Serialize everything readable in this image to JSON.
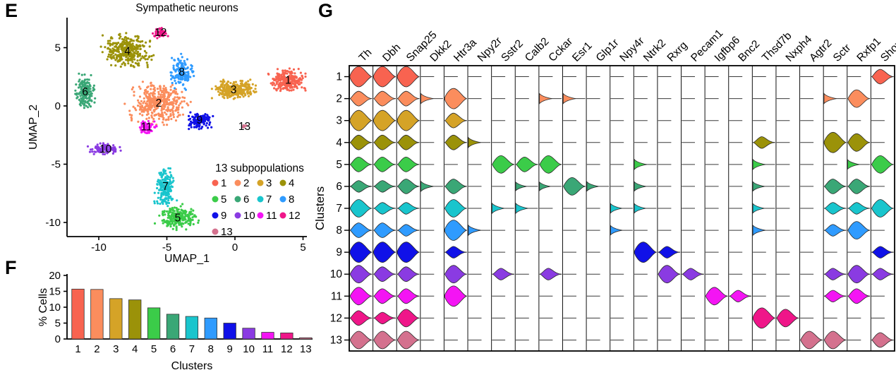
{
  "palette": {
    "1": "#f86350",
    "2": "#fb8d5d",
    "3": "#d5a327",
    "4": "#9b9209",
    "5": "#3bcc49",
    "6": "#3aa776",
    "7": "#19c5cd",
    "8": "#2f9bff",
    "9": "#1011e8",
    "10": "#8a3be2",
    "11": "#f414f4",
    "12": "#ef1689",
    "13": "#d4718e"
  },
  "panels": {
    "umap": {
      "label": "E"
    },
    "bars": {
      "label": "F"
    },
    "violins": {
      "label": "G"
    }
  },
  "chart_data": [
    {
      "type": "scatter",
      "name": "umap",
      "title": "Sympathetic neurons",
      "xlabel": "UMAP_1",
      "ylabel": "UMAP_2",
      "xticks": [
        "-10",
        "-5",
        "0",
        "5"
      ],
      "yticks": [
        "5",
        "0",
        "-5",
        "-10"
      ],
      "xlim": [
        -12.3,
        5.8
      ],
      "ylim": [
        -11.3,
        7.6
      ],
      "legend_title": "13 subpopulations",
      "legend_rows": [
        [
          "1",
          "2",
          "3",
          "4"
        ],
        [
          "5",
          "6",
          "7",
          "8"
        ],
        [
          "9",
          "10",
          "11",
          "12"
        ],
        [
          "13"
        ]
      ],
      "clusters": [
        {
          "id": "1",
          "center": [
            3.9,
            2.2
          ]
        },
        {
          "id": "2",
          "center": [
            -5.6,
            0.25
          ]
        },
        {
          "id": "3",
          "center": [
            -0.1,
            1.4
          ]
        },
        {
          "id": "4",
          "center": [
            -7.9,
            4.7
          ]
        },
        {
          "id": "5",
          "center": [
            -4.2,
            -9.6
          ]
        },
        {
          "id": "6",
          "center": [
            -11.0,
            1.2
          ]
        },
        {
          "id": "7",
          "center": [
            -5.1,
            -6.9
          ]
        },
        {
          "id": "8",
          "center": [
            -3.9,
            2.9
          ]
        },
        {
          "id": "9",
          "center": [
            -2.6,
            -1.2
          ]
        },
        {
          "id": "10",
          "center": [
            -9.5,
            -3.7
          ]
        },
        {
          "id": "11",
          "center": [
            -6.5,
            -1.8
          ]
        },
        {
          "id": "12",
          "center": [
            -5.45,
            6.3
          ]
        },
        {
          "id": "13",
          "center": [
            0.7,
            -1.75
          ]
        }
      ]
    },
    {
      "type": "bar",
      "name": "pct_cells",
      "xlabel": "Clusters",
      "ylabel": "% Cells",
      "ylim": [
        0,
        20
      ],
      "yticks": [
        0,
        5,
        10,
        15,
        20
      ],
      "categories": [
        "1",
        "2",
        "3",
        "4",
        "5",
        "6",
        "7",
        "8",
        "9",
        "10",
        "11",
        "12",
        "13"
      ],
      "values": [
        15.7,
        15.6,
        12.7,
        12.3,
        9.8,
        7.8,
        7.1,
        6.6,
        5.0,
        3.4,
        2.1,
        1.9,
        0.4
      ]
    },
    {
      "type": "violin",
      "name": "marker_expression",
      "ylabel": "Clusters",
      "genes": [
        "Th",
        "Dbh",
        "Snap25",
        "Dkk2",
        "Htr3a",
        "Npy2r",
        "Sstr2",
        "Calb2",
        "Cckar",
        "Esr1",
        "Glp1r",
        "Npy4r",
        "Ntrk2",
        "Rxrg",
        "Pecam1",
        "Igfbp6",
        "Bnc2",
        "Thsd7b",
        "Nxph4",
        "Agtr2",
        "Sctr",
        "Rxfp1",
        "Shox2"
      ],
      "clusters": [
        "1",
        "2",
        "3",
        "4",
        "5",
        "6",
        "7",
        "8",
        "9",
        "10",
        "11",
        "12",
        "13"
      ],
      "scale": "relative expression 0-3 (0 = not detected, 3 = high)",
      "expression_matrix": [
        [
          3,
          3,
          3,
          0,
          0,
          0,
          0,
          0,
          0,
          0,
          0,
          0,
          0,
          0,
          0,
          0,
          0,
          0,
          0,
          0,
          0,
          0,
          2
        ],
        [
          2,
          2,
          2,
          1,
          3,
          0,
          0,
          0,
          1,
          1,
          0,
          0,
          0,
          0,
          0,
          0,
          0,
          0,
          0,
          0,
          1,
          2.5,
          0
        ],
        [
          3,
          3,
          3,
          0,
          2,
          0,
          0,
          0,
          0,
          0,
          0,
          0,
          0,
          0,
          0,
          0,
          0,
          0,
          0,
          0,
          0,
          0,
          0
        ],
        [
          2,
          2,
          2,
          0,
          2,
          1,
          0,
          0,
          0,
          0,
          0,
          0,
          0,
          0,
          0,
          0,
          0,
          1.5,
          0,
          0,
          3,
          2.5,
          0
        ],
        [
          2,
          2,
          2,
          0,
          0,
          0,
          2.5,
          2,
          2.5,
          0,
          0,
          0,
          1,
          0,
          0,
          0,
          0,
          1,
          0,
          0,
          0,
          0.75,
          2.5
        ],
        [
          1.5,
          1.5,
          2,
          1,
          2,
          0,
          0,
          0.5,
          0.5,
          2.5,
          0.75,
          0,
          0.75,
          0,
          0,
          0,
          0,
          0.75,
          0,
          0,
          2,
          2,
          0
        ],
        [
          2.5,
          1.5,
          1.5,
          0,
          2.5,
          0,
          1,
          1,
          0,
          0,
          0,
          0.75,
          0.75,
          0,
          0,
          0,
          0,
          0.75,
          0,
          0,
          1.5,
          1.5,
          2.5
        ],
        [
          2,
          2,
          1.5,
          0,
          3,
          1,
          0,
          0,
          0,
          0,
          0,
          0.75,
          0,
          0,
          0,
          0,
          0,
          1,
          0,
          0,
          1.5,
          2.5,
          0
        ],
        [
          3,
          3,
          3,
          0,
          1.5,
          0,
          0,
          0,
          0,
          0,
          0,
          0,
          3,
          1.5,
          0,
          0,
          0,
          0,
          0,
          0,
          0,
          0,
          1.5
        ],
        [
          2.5,
          2,
          2,
          0,
          2.5,
          0,
          1.5,
          0,
          1.5,
          0,
          0,
          0,
          0,
          2.5,
          1.5,
          0,
          0,
          0,
          0,
          0,
          1.5,
          2.5,
          1.5
        ],
        [
          2.5,
          2,
          2,
          0,
          3,
          0,
          0,
          0,
          0,
          0,
          0,
          0,
          0,
          0,
          0,
          2.5,
          1.5,
          0,
          0,
          0,
          1.5,
          2,
          0
        ],
        [
          2,
          1.5,
          2.5,
          0,
          0,
          0,
          0,
          0,
          0,
          0,
          0,
          0,
          0,
          0,
          0,
          0,
          0,
          3,
          2.5,
          0,
          0,
          0,
          0
        ],
        [
          2.5,
          2.5,
          2.5,
          0,
          0,
          0,
          0,
          0,
          0,
          0,
          0,
          0,
          0,
          0,
          0,
          0,
          0,
          0,
          0,
          2.5,
          2.5,
          0,
          2
        ]
      ]
    }
  ]
}
